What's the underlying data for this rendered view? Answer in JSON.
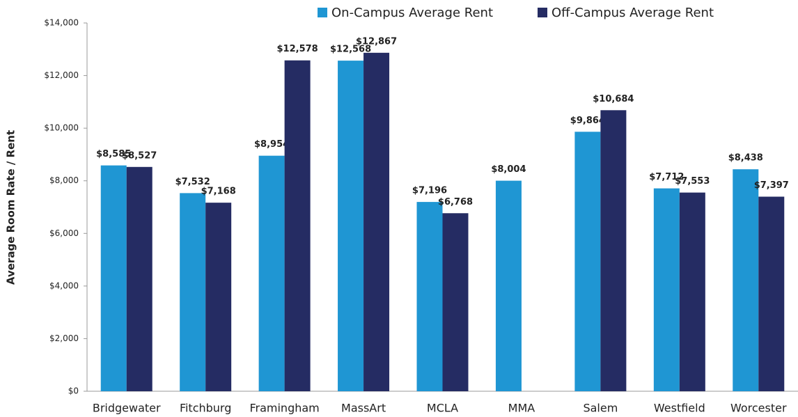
{
  "chart_data": {
    "type": "bar",
    "y_label": "Average Room Rate / Rent",
    "categories": [
      "Bridgewater",
      "Fitchburg",
      "Framingham",
      "MassArt",
      "MCLA",
      "MMA",
      "Salem",
      "Westfield",
      "Worcester"
    ],
    "series": [
      {
        "name": "On-Campus Average Rent",
        "color": "#1f96d3",
        "values": [
          8585,
          7532,
          8954,
          12568,
          7196,
          8004,
          9864,
          7712,
          8438
        ],
        "value_labels": [
          "$8,585",
          "$7,532",
          "$8,954",
          "$12,568",
          "$7,196",
          "$8,004",
          "$9,864",
          "$7,712",
          "$8,438"
        ]
      },
      {
        "name": "Off-Campus Average Rent",
        "color": "#252c63",
        "values": [
          8527,
          7168,
          12578,
          12867,
          6768,
          null,
          10684,
          7553,
          7397
        ],
        "value_labels": [
          "$8,527",
          "$7,168",
          "$12,578",
          "$12,867",
          "$6,768",
          null,
          "$10,684",
          "$7,553",
          "$7,397"
        ]
      }
    ],
    "ylim": [
      0,
      14000
    ],
    "yticks": [
      {
        "value": 0,
        "label": "$0"
      },
      {
        "value": 2000,
        "label": "$2,000"
      },
      {
        "value": 4000,
        "label": "$4,000"
      },
      {
        "value": 6000,
        "label": "$6,000"
      },
      {
        "value": 8000,
        "label": "$8,000"
      },
      {
        "value": 10000,
        "label": "$10,000"
      },
      {
        "value": 12000,
        "label": "$12,000"
      },
      {
        "value": 14000,
        "label": "$14,000"
      }
    ],
    "grid": false,
    "legend": "top"
  }
}
